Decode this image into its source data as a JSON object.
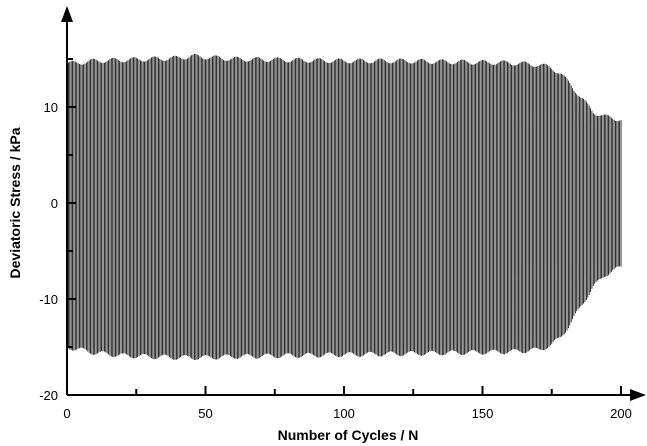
{
  "chart_data": {
    "type": "line",
    "title": "",
    "xlabel": "Number of Cycles / N",
    "ylabel": "Deviatoric Stress / kPa",
    "xlim": [
      0,
      205
    ],
    "ylim": [
      -20,
      20
    ],
    "xticks": [
      0,
      50,
      100,
      150,
      200
    ],
    "xtick_labels": [
      "0",
      "50",
      "100",
      "150",
      "200"
    ],
    "yticks": [
      -20,
      -10,
      0,
      10
    ],
    "ytick_labels": [
      "-20",
      "-10",
      "0",
      "10"
    ],
    "grid": false,
    "legend": "none",
    "line_color": "#000000",
    "cycles": 200,
    "series": [
      {
        "upper_envelope": {
          "x": [
            0,
            10,
            20,
            30,
            40,
            45,
            50,
            60,
            80,
            100,
            120,
            140,
            160,
            170,
            175,
            178,
            182,
            186,
            190,
            194,
            200
          ],
          "y": [
            14.5,
            14.8,
            14.9,
            15.0,
            15.1,
            15.3,
            15.2,
            15.0,
            14.9,
            14.8,
            14.8,
            14.7,
            14.6,
            14.4,
            14.1,
            13.5,
            12.3,
            10.8,
            9.5,
            9.0,
            8.7
          ]
        },
        "lower_envelope": {
          "x": [
            0,
            10,
            20,
            30,
            40,
            50,
            60,
            80,
            100,
            120,
            140,
            160,
            170,
            175,
            178,
            182,
            186,
            190,
            194,
            200
          ],
          "y": [
            -15.0,
            -15.6,
            -15.9,
            -16.0,
            -16.1,
            -16.1,
            -16.0,
            -15.9,
            -15.8,
            -15.7,
            -15.6,
            -15.5,
            -15.3,
            -14.8,
            -14.0,
            -12.5,
            -10.5,
            -8.8,
            -7.5,
            -6.7
          ]
        }
      }
    ]
  }
}
